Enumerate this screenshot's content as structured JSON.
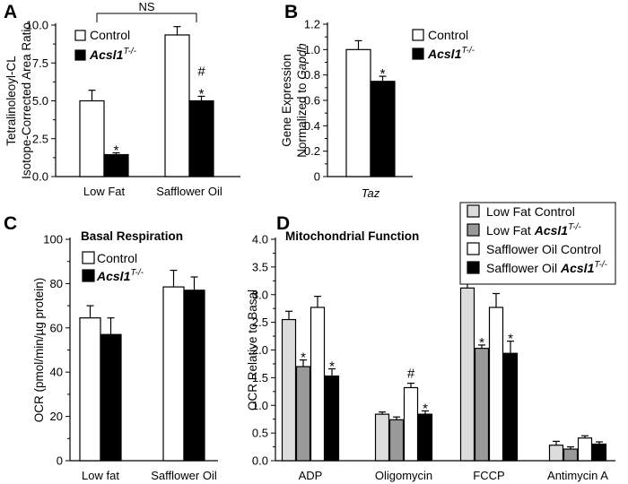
{
  "chart_data": [
    {
      "panel": "A",
      "type": "bar",
      "title": "",
      "ylabel": [
        "Tetralinoleoyl-CL",
        "Isotope-Corrected Area Ratio"
      ],
      "xlabel": "",
      "ylim": [
        0,
        10
      ],
      "yticks": [
        "0.0",
        "2.5",
        "5.0",
        "7.5",
        "10.0"
      ],
      "categories": [
        "Low Fat",
        "Safflower Oil"
      ],
      "series": [
        {
          "name": "Control",
          "genotype_sup": "",
          "color": "#ffffff",
          "values": [
            5.0,
            9.35
          ],
          "errors": [
            0.7,
            0.55
          ]
        },
        {
          "name": "Acsl1",
          "genotype_sup": "T-/-",
          "color": "#000000",
          "values": [
            1.45,
            5.0
          ],
          "errors": [
            0.12,
            0.3
          ]
        }
      ],
      "annotations": [
        {
          "text": "*",
          "category": 0,
          "series": 1
        },
        {
          "text": "#",
          "category": 1,
          "series": 1
        },
        {
          "text": "*",
          "category": 1,
          "series": 1
        }
      ],
      "bracket_label": "NS",
      "legend": "top-left"
    },
    {
      "panel": "B",
      "type": "bar",
      "title": "",
      "ylabel": [
        "Gene Expression",
        "Normalized to Gapdh"
      ],
      "xlabel": "",
      "ylim": [
        0,
        1.2
      ],
      "yticks": [
        "0",
        "0.2",
        "0.4",
        "0.6",
        "0.8",
        "1.0",
        "1.2"
      ],
      "categories": [
        "Taz"
      ],
      "series": [
        {
          "name": "Control",
          "genotype_sup": "",
          "color": "#ffffff",
          "values": [
            1.0
          ],
          "errors": [
            0.07
          ]
        },
        {
          "name": "Acsl1",
          "genotype_sup": "T-/-",
          "color": "#000000",
          "values": [
            0.75
          ],
          "errors": [
            0.04
          ]
        }
      ],
      "annotations": [
        {
          "text": "*",
          "category": 0,
          "series": 1
        }
      ],
      "legend": "top-right"
    },
    {
      "panel": "C",
      "type": "bar",
      "title": "Basal Respiration",
      "ylabel": [
        "OCR (pmol/min/µg protein)"
      ],
      "xlabel": "",
      "ylim": [
        0,
        100
      ],
      "yticks": [
        "0",
        "20",
        "40",
        "60",
        "80",
        "100"
      ],
      "categories": [
        "Low fat",
        "Safflower Oil"
      ],
      "series": [
        {
          "name": "Control",
          "genotype_sup": "",
          "color": "#ffffff",
          "values": [
            64.5,
            78.5
          ],
          "errors": [
            5.5,
            7.5
          ]
        },
        {
          "name": "Acsl1",
          "genotype_sup": "T-/-",
          "color": "#000000",
          "values": [
            57,
            77
          ],
          "errors": [
            7.5,
            6
          ]
        }
      ],
      "annotations": [],
      "legend": "top-left"
    },
    {
      "panel": "D",
      "type": "bar",
      "title": "Mitochondrial Function",
      "ylabel": [
        "OCR Relative to Basal"
      ],
      "xlabel": "",
      "ylim": [
        0,
        4.0
      ],
      "yticks": [
        "0.0",
        "0.5",
        "1.0",
        "1.5",
        "2.0",
        "2.5",
        "3.0",
        "3.5",
        "4.0"
      ],
      "categories": [
        "ADP",
        "Oligomycin",
        "FCCP",
        "Antimycin A"
      ],
      "series": [
        {
          "name": "Low Fat Control",
          "genotype_sup": "",
          "color": "#dcdcdc",
          "values": [
            2.55,
            0.84,
            3.12,
            0.28
          ],
          "errors": [
            0.15,
            0.04,
            0.27,
            0.07
          ]
        },
        {
          "name": "Low Fat Acsl1",
          "genotype_sup": "T-/-",
          "color": "#999999",
          "values": [
            1.7,
            0.74,
            2.03,
            0.21
          ],
          "errors": [
            0.12,
            0.05,
            0.06,
            0.04
          ]
        },
        {
          "name": "Safflower Oil Control",
          "genotype_sup": "",
          "color": "#ffffff",
          "values": [
            2.77,
            1.32,
            2.77,
            0.41
          ],
          "errors": [
            0.2,
            0.08,
            0.25,
            0.04
          ]
        },
        {
          "name": "Safflower Oil Acsl1",
          "genotype_sup": "T-/-",
          "color": "#000000",
          "values": [
            1.53,
            0.84,
            1.94,
            0.3
          ],
          "errors": [
            0.13,
            0.06,
            0.22,
            0.04
          ]
        }
      ],
      "annotations": [
        {
          "text": "*",
          "category": 0,
          "series": 1
        },
        {
          "text": "*",
          "category": 0,
          "series": 3
        },
        {
          "text": "#",
          "category": 1,
          "series": 2
        },
        {
          "text": "*",
          "category": 1,
          "series": 3
        },
        {
          "text": "*",
          "category": 2,
          "series": 1
        },
        {
          "text": "*",
          "category": 2,
          "series": 3
        }
      ],
      "legend": "top-right"
    }
  ]
}
